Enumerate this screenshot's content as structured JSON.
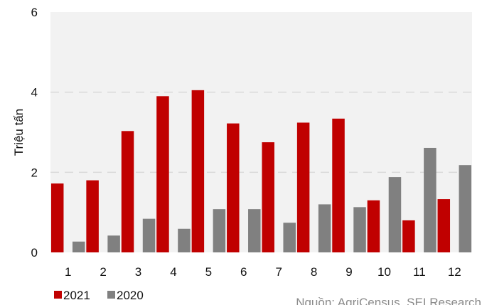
{
  "chart_data": {
    "type": "bar",
    "title": "",
    "xlabel": "",
    "ylabel": "Triệu tấn",
    "ylim": [
      0,
      6
    ],
    "yticks": [
      0,
      2,
      4,
      6
    ],
    "grid": true,
    "legend_position": "bottom-left",
    "categories": [
      "1",
      "2",
      "3",
      "4",
      "5",
      "6",
      "7",
      "8",
      "9",
      "10",
      "11",
      "12"
    ],
    "series": [
      {
        "name": "2021",
        "color": "#c00000",
        "values": [
          1.72,
          1.8,
          3.03,
          3.9,
          4.05,
          3.22,
          2.75,
          3.24,
          3.34,
          1.3,
          0.8,
          1.33
        ]
      },
      {
        "name": "2020",
        "color": "#808080",
        "values": [
          0.27,
          0.42,
          0.84,
          0.59,
          1.08,
          1.08,
          0.74,
          1.2,
          1.13,
          1.88,
          2.61,
          2.18
        ]
      }
    ]
  },
  "source_note": "Nguồn: AgriCensus, SEI Research"
}
